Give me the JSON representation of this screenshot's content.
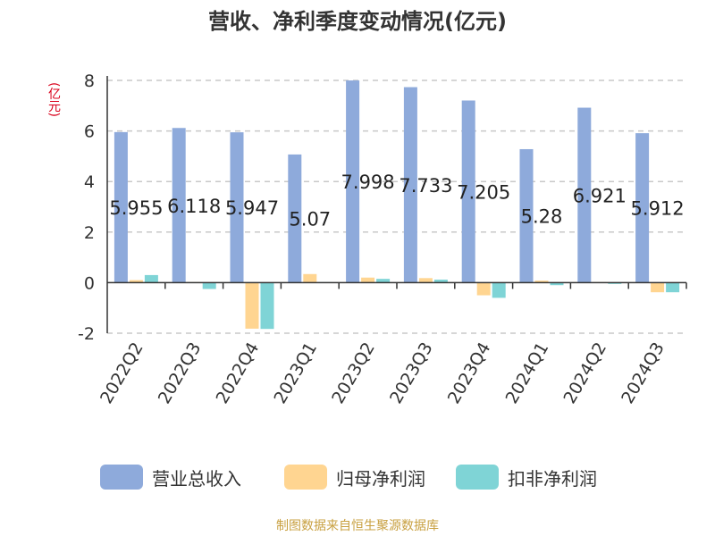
{
  "title": "营收、净利季度变动情况(亿元)",
  "unit": "(亿元)",
  "source": "制图数据来自恒生聚源数据库",
  "colors": {
    "revenue": "#8eaadb",
    "net_profit": "#ffd591",
    "deducted_profit": "#7fd4d6"
  },
  "chart_data": {
    "type": "bar",
    "title": "营收、净利季度变动情况(亿元)",
    "ylabel": "(亿元)",
    "xlabel": "",
    "ylim": [
      -2,
      8
    ],
    "yticks": [
      8,
      6,
      4,
      2,
      0,
      -2
    ],
    "grid": true,
    "legend_position": "bottom",
    "categories": [
      "2022Q2",
      "2022Q3",
      "2022Q4",
      "2023Q1",
      "2023Q2",
      "2023Q3",
      "2023Q4",
      "2024Q1",
      "2024Q2",
      "2024Q3"
    ],
    "series": [
      {
        "name": "营业总收入",
        "values": [
          5.955,
          6.118,
          5.947,
          5.07,
          7.998,
          7.733,
          7.205,
          5.28,
          6.921,
          5.912
        ]
      },
      {
        "name": "归母净利润",
        "values": [
          0.1,
          0.02,
          -1.82,
          0.34,
          0.2,
          0.18,
          -0.5,
          0.08,
          0.02,
          -0.38
        ]
      },
      {
        "name": "扣非净利润",
        "values": [
          0.3,
          -0.25,
          -1.83,
          0.02,
          0.15,
          0.12,
          -0.6,
          -0.1,
          -0.05,
          -0.38
        ]
      }
    ],
    "data_labels": [
      "5.955",
      "6.118",
      "5.947",
      "5.07",
      "7.998",
      "7.733",
      "7.205",
      "5.28",
      "6.921",
      "5.912"
    ]
  }
}
